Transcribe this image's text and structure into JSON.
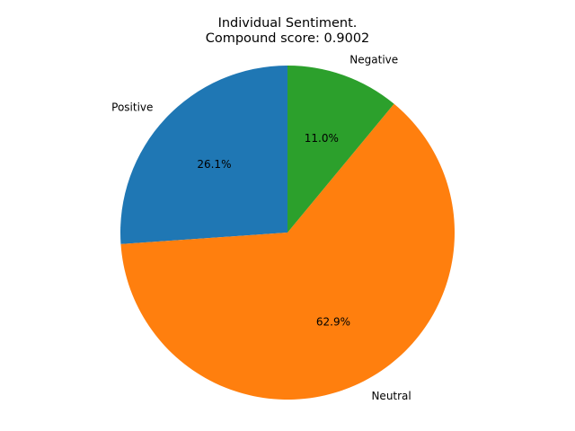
{
  "chart_data": {
    "type": "pie",
    "title": [
      "Individual Sentiment.",
      "Compound score: 0.9002"
    ],
    "slices": [
      {
        "label": "Positive",
        "value": 26.1,
        "pct_label": "26.1%",
        "color": "#1f77b4"
      },
      {
        "label": "Neutral",
        "value": 62.9,
        "pct_label": "62.9%",
        "color": "#ff7f0e"
      },
      {
        "label": "Negative",
        "value": 11.0,
        "pct_label": "11.0%",
        "color": "#2ca02c"
      }
    ],
    "start_angle_deg": 90,
    "direction": "counterclockwise",
    "legend": "none"
  }
}
